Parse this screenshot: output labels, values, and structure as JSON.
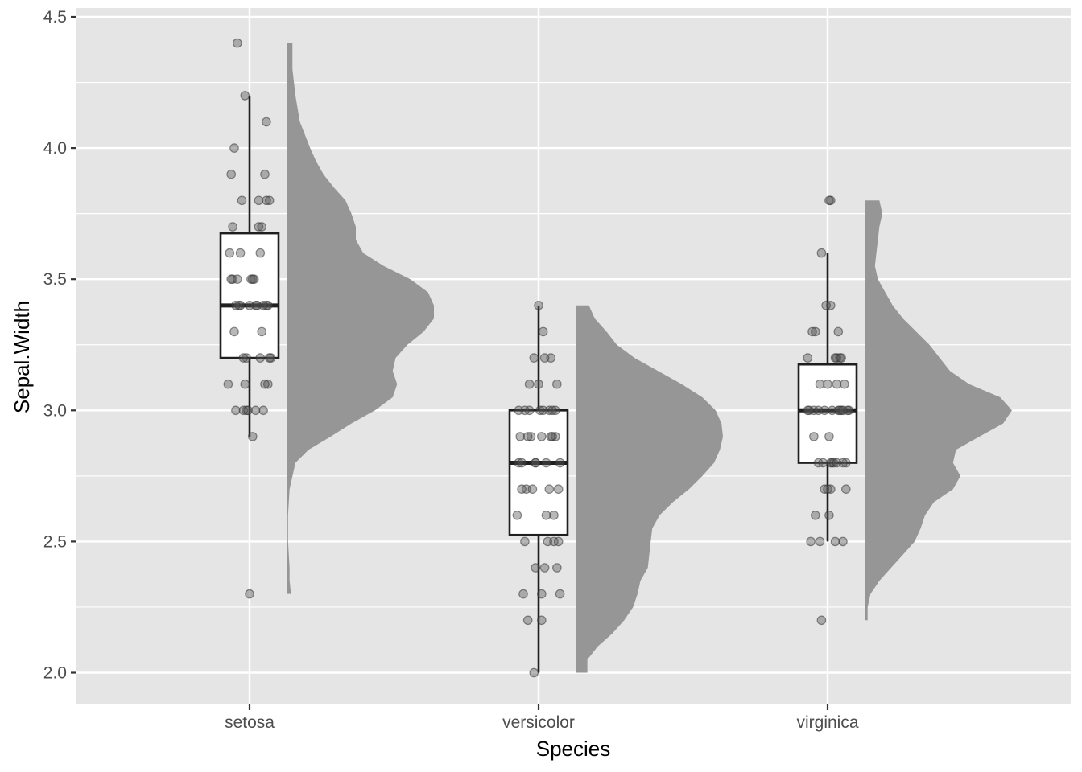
{
  "chart_data": {
    "type": "raincloud",
    "xlabel": "Species",
    "ylabel": "Sepal.Width",
    "ylim": [
      1.88,
      4.55
    ],
    "yticks": [
      2.0,
      2.5,
      3.0,
      3.5,
      4.0,
      4.5
    ],
    "ytick_labels": [
      "2.0",
      "2.5",
      "3.0",
      "3.5",
      "4.0",
      "4.5"
    ],
    "categories": [
      "setosa",
      "versicolor",
      "virginica"
    ],
    "grid": true,
    "colors": {
      "panel": "#e5e5e5",
      "grid": "#ffffff",
      "density": "#969696",
      "box_fill": "#ffffff",
      "box_line": "#1f1f1f",
      "point": "#555555",
      "axis_text": "#4d4d4d",
      "title_text": "#000000"
    },
    "boxplots": [
      {
        "category": "setosa",
        "lower_whisker": 2.9,
        "q1": 3.2,
        "median": 3.4,
        "q3": 3.675,
        "upper_whisker": 4.2
      },
      {
        "category": "versicolor",
        "lower_whisker": 2.0,
        "q1": 2.525,
        "median": 2.8,
        "q3": 3.0,
        "upper_whisker": 3.4
      },
      {
        "category": "virginica",
        "lower_whisker": 2.5,
        "q1": 2.8,
        "median": 3.0,
        "q3": 3.175,
        "upper_whisker": 3.6
      }
    ],
    "densities": [
      {
        "category": "setosa",
        "y": [
          2.3,
          2.35,
          2.4,
          2.5,
          2.6,
          2.7,
          2.8,
          2.85,
          2.9,
          2.95,
          3.0,
          3.05,
          3.1,
          3.15,
          3.2,
          3.25,
          3.3,
          3.35,
          3.4,
          3.45,
          3.5,
          3.55,
          3.6,
          3.65,
          3.7,
          3.75,
          3.8,
          3.85,
          3.9,
          3.95,
          4.0,
          4.1,
          4.2,
          4.3,
          4.4
        ],
        "density": [
          0.03,
          0.02,
          0.02,
          0.01,
          0.01,
          0.02,
          0.06,
          0.15,
          0.3,
          0.44,
          0.6,
          0.72,
          0.75,
          0.72,
          0.74,
          0.82,
          0.93,
          1.0,
          1.0,
          0.96,
          0.84,
          0.66,
          0.52,
          0.47,
          0.47,
          0.44,
          0.4,
          0.32,
          0.25,
          0.2,
          0.16,
          0.09,
          0.06,
          0.04,
          0.04
        ]
      },
      {
        "category": "versicolor",
        "y": [
          2.0,
          2.05,
          2.1,
          2.15,
          2.2,
          2.25,
          2.3,
          2.35,
          2.4,
          2.45,
          2.5,
          2.55,
          2.6,
          2.65,
          2.7,
          2.75,
          2.8,
          2.85,
          2.9,
          2.95,
          3.0,
          3.05,
          3.1,
          3.15,
          3.2,
          3.25,
          3.3,
          3.35,
          3.4
        ],
        "density": [
          0.08,
          0.08,
          0.15,
          0.25,
          0.33,
          0.39,
          0.42,
          0.44,
          0.49,
          0.5,
          0.51,
          0.52,
          0.57,
          0.66,
          0.77,
          0.86,
          0.94,
          0.98,
          1.0,
          0.99,
          0.95,
          0.86,
          0.72,
          0.56,
          0.4,
          0.28,
          0.21,
          0.13,
          0.09
        ]
      },
      {
        "category": "virginica",
        "y": [
          2.2,
          2.25,
          2.3,
          2.35,
          2.4,
          2.45,
          2.5,
          2.55,
          2.6,
          2.65,
          2.7,
          2.75,
          2.8,
          2.85,
          2.9,
          2.95,
          3.0,
          3.05,
          3.1,
          3.15,
          3.2,
          3.25,
          3.3,
          3.35,
          3.4,
          3.45,
          3.5,
          3.55,
          3.6,
          3.65,
          3.7,
          3.75,
          3.8
        ],
        "density": [
          0.02,
          0.02,
          0.04,
          0.1,
          0.18,
          0.26,
          0.34,
          0.38,
          0.41,
          0.47,
          0.6,
          0.65,
          0.6,
          0.62,
          0.78,
          0.94,
          1.0,
          0.92,
          0.71,
          0.58,
          0.51,
          0.44,
          0.35,
          0.26,
          0.19,
          0.14,
          0.09,
          0.07,
          0.08,
          0.09,
          0.1,
          0.12,
          0.1
        ]
      }
    ],
    "points": [
      {
        "category": "setosa",
        "values": [
          3.5,
          3.0,
          3.2,
          3.1,
          3.6,
          3.9,
          3.4,
          3.4,
          2.9,
          3.1,
          3.7,
          3.4,
          3.0,
          3.0,
          4.0,
          4.4,
          3.9,
          3.5,
          3.8,
          3.8,
          3.4,
          3.7,
          3.6,
          3.3,
          3.4,
          3.0,
          3.4,
          3.5,
          3.4,
          3.2,
          3.1,
          3.4,
          4.1,
          4.2,
          3.1,
          3.2,
          3.5,
          3.6,
          3.0,
          3.4,
          3.5,
          2.3,
          3.2,
          3.5,
          3.8,
          3.0,
          3.8,
          3.2,
          3.7,
          3.3
        ],
        "jitter": [
          0.01,
          -0.09,
          0.14,
          -0.03,
          0.07,
          -0.12,
          0.11,
          -0.06,
          0.02,
          0.12,
          -0.11,
          0.04,
          -0.02,
          0.09,
          -0.1,
          -0.08,
          0.1,
          0.03,
          -0.05,
          0.13,
          -0.07,
          0.06,
          -0.13,
          0.08,
          0.0,
          -0.04,
          0.12,
          -0.11,
          0.05,
          -0.02,
          0.1,
          -0.09,
          0.11,
          -0.03,
          -0.14,
          0.07,
          0.02,
          -0.06,
          0.04,
          0.09,
          -0.12,
          0.0,
          0.13,
          -0.08,
          0.06,
          -0.01,
          0.11,
          -0.04,
          0.08,
          -0.1
        ]
      },
      {
        "category": "versicolor",
        "values": [
          3.2,
          3.2,
          3.1,
          2.3,
          2.8,
          2.8,
          3.3,
          2.4,
          2.9,
          2.7,
          2.0,
          3.0,
          2.2,
          2.9,
          2.9,
          3.1,
          3.0,
          2.7,
          2.2,
          2.5,
          3.2,
          2.8,
          2.5,
          2.8,
          2.9,
          3.0,
          2.8,
          3.0,
          2.9,
          2.6,
          2.4,
          2.4,
          2.7,
          2.7,
          3.0,
          3.4,
          3.1,
          2.3,
          3.0,
          2.5,
          2.6,
          3.0,
          2.6,
          2.3,
          2.7,
          3.0,
          2.9,
          2.9,
          2.5,
          2.8
        ],
        "jitter": [
          -0.03,
          0.08,
          0.12,
          -0.1,
          0.05,
          -0.13,
          0.03,
          -0.02,
          0.11,
          -0.08,
          -0.03,
          0.07,
          0.02,
          -0.12,
          0.09,
          0.0,
          -0.06,
          0.13,
          -0.07,
          0.06,
          0.04,
          -0.11,
          0.1,
          -0.02,
          0.08,
          -0.09,
          0.14,
          0.01,
          -0.05,
          -0.14,
          0.12,
          0.04,
          -0.11,
          0.07,
          0.11,
          0.0,
          -0.06,
          0.02,
          0.03,
          -0.09,
          0.1,
          -0.13,
          0.05,
          0.14,
          -0.04,
          0.09,
          -0.07,
          0.02,
          0.13,
          -0.02
        ]
      },
      {
        "category": "virginica",
        "values": [
          3.3,
          2.7,
          3.0,
          2.9,
          3.0,
          3.0,
          2.5,
          2.9,
          2.5,
          3.6,
          3.2,
          2.7,
          3.0,
          2.5,
          2.8,
          3.2,
          3.0,
          3.8,
          2.6,
          2.2,
          3.2,
          2.8,
          2.8,
          2.7,
          3.3,
          3.2,
          2.8,
          3.0,
          2.8,
          3.0,
          2.8,
          3.8,
          2.8,
          2.8,
          2.6,
          3.0,
          3.4,
          3.1,
          3.0,
          3.1,
          3.1,
          3.1,
          2.7,
          3.2,
          3.3,
          3.0,
          2.5,
          3.0,
          3.4,
          3.0
        ],
        "jitter": [
          -0.08,
          0.12,
          0.03,
          -0.09,
          0.07,
          -0.02,
          0.1,
          0.01,
          -0.11,
          -0.04,
          0.06,
          0.02,
          0.14,
          -0.05,
          0.03,
          -0.13,
          0.09,
          0.02,
          -0.08,
          -0.04,
          0.05,
          0.12,
          -0.06,
          0.0,
          -0.1,
          0.08,
          0.02,
          -0.12,
          0.04,
          0.13,
          0.1,
          0.01,
          -0.03,
          0.06,
          0.01,
          -0.09,
          0.02,
          -0.05,
          0.08,
          0.06,
          0.0,
          0.11,
          -0.02,
          0.09,
          0.07,
          -0.06,
          0.05,
          0.1,
          -0.01,
          -0.13
        ]
      }
    ]
  }
}
